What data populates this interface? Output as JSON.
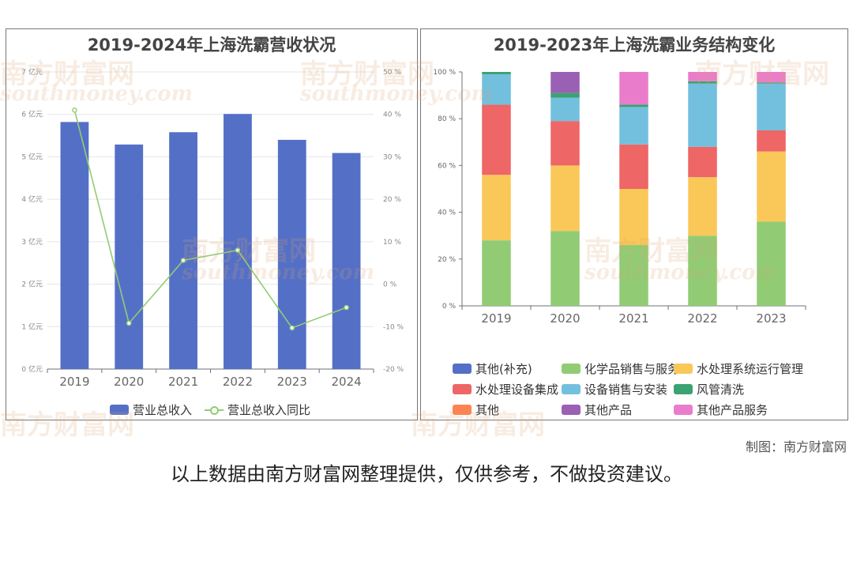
{
  "watermark": {
    "cn": "南方财富网",
    "en": "southmoney.com"
  },
  "credit": "制图：南方财富网",
  "disclaimer": "以上数据由南方财富网整理提供，仅供参考，不做投资建议。",
  "chart_data": [
    {
      "type": "bar",
      "title": "2019-2024年上海洗霸营收状况",
      "categories": [
        "2019",
        "2020",
        "2021",
        "2022",
        "2023",
        "2024"
      ],
      "series": [
        {
          "name": "营业总收入",
          "type": "bar",
          "axis": "left",
          "color": "#5470c6",
          "values": [
            5.82,
            5.29,
            5.58,
            6.01,
            5.4,
            5.09
          ]
        },
        {
          "name": "营业总收入同比",
          "type": "line",
          "axis": "right",
          "color": "#91cc75",
          "values": [
            41.0,
            -9.2,
            5.6,
            8.0,
            -10.3,
            -5.5
          ]
        }
      ],
      "y_left": {
        "min": 0,
        "max": 7,
        "step": 1,
        "unit": "亿元",
        "tick_labels": [
          "0 亿元",
          "1 亿元",
          "2 亿元",
          "3 亿元",
          "4 亿元",
          "5 亿元",
          "6 亿元",
          "7 亿元"
        ]
      },
      "y_right": {
        "min": -20,
        "max": 50,
        "step": 10,
        "unit": "%",
        "tick_labels": [
          "-20 %",
          "-10 %",
          "0 %",
          "10 %",
          "20 %",
          "30 %",
          "40 %",
          "50 %"
        ]
      },
      "grid": true,
      "legend_position": "bottom"
    },
    {
      "type": "bar",
      "stacked": true,
      "title": "2019-2023年上海洗霸业务结构变化",
      "categories": [
        "2019",
        "2020",
        "2021",
        "2022",
        "2023"
      ],
      "y": {
        "min": 0,
        "max": 100,
        "step": 20,
        "unit": "%",
        "tick_labels": [
          "0 %",
          "20 %",
          "40 %",
          "60 %",
          "80 %",
          "100 %"
        ]
      },
      "series": [
        {
          "name": "其他(补充)",
          "color": "#5470c6",
          "values": [
            0,
            0,
            0,
            0,
            0
          ]
        },
        {
          "name": "化学品销售与服务",
          "color": "#91cc75",
          "values": [
            28,
            32,
            26,
            30,
            36
          ]
        },
        {
          "name": "水处理系统运行管理",
          "color": "#fac858",
          "values": [
            28,
            28,
            24,
            25,
            30
          ]
        },
        {
          "name": "水处理设备集成",
          "color": "#ee6666",
          "values": [
            30,
            19,
            19,
            13,
            9
          ]
        },
        {
          "name": "设备销售与安装",
          "color": "#73c0de",
          "values": [
            13,
            10,
            16,
            27,
            20
          ]
        },
        {
          "name": "风管清洗",
          "color": "#3ba272",
          "values": [
            1,
            2,
            1,
            1,
            0.5
          ]
        },
        {
          "name": "其他",
          "color": "#fc8452",
          "values": [
            0,
            0,
            0,
            0,
            0
          ]
        },
        {
          "name": "其他产品",
          "color": "#9a60b4",
          "values": [
            0,
            9,
            0,
            0,
            0
          ]
        },
        {
          "name": "其他产品服务",
          "color": "#ea7ccc",
          "values": [
            0,
            0,
            14,
            4,
            4.5
          ]
        }
      ],
      "grid": false,
      "legend_position": "bottom"
    }
  ]
}
